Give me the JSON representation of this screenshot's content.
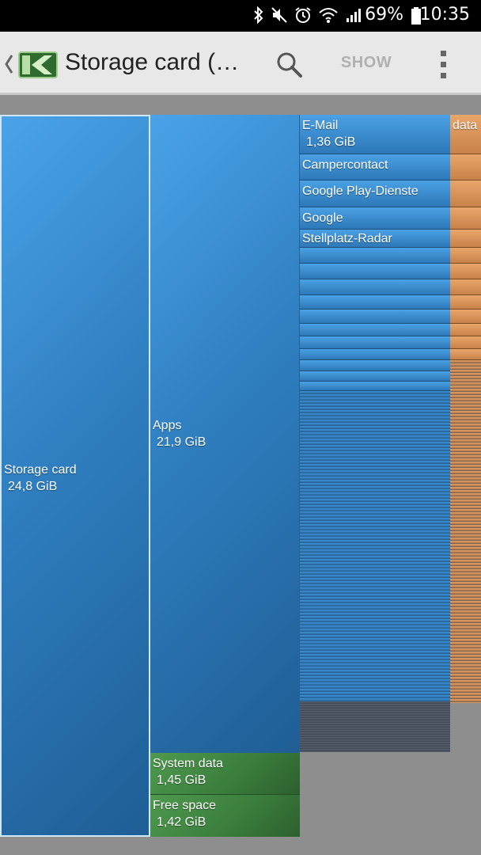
{
  "status_bar": {
    "battery": "69%",
    "time": "10:35",
    "icons": [
      "bluetooth-icon",
      "mute-icon",
      "alarm-icon",
      "wifi-icon",
      "signal-icon",
      "battery-icon"
    ]
  },
  "app_bar": {
    "title": "Storage card (…",
    "show_label": "SHOW",
    "icons": [
      "back-icon",
      "app-logo-icon",
      "search-icon",
      "overflow-menu-icon"
    ]
  },
  "treemap": {
    "root": {
      "label": "Storage card",
      "size": "24,8 GiB"
    },
    "apps": {
      "label": "Apps",
      "size": "21,9 GiB"
    },
    "system_data": {
      "label": "System data",
      "size": "1,45 GiB"
    },
    "free_space": {
      "label": "Free space",
      "size": "1,42 GiB"
    },
    "app_items": [
      {
        "label": "E-Mail",
        "size": "1,36 GiB"
      },
      {
        "label": "Campercontact"
      },
      {
        "label": "Google Play-Dienste"
      },
      {
        "label": "Google"
      },
      {
        "label": "Stellplatz-Radar"
      }
    ],
    "data_label": "data",
    "colors": {
      "apps": "#2f7fc1",
      "system": "#3a7c3c",
      "data": "#d08c52",
      "background": "#8e8e8e"
    }
  }
}
